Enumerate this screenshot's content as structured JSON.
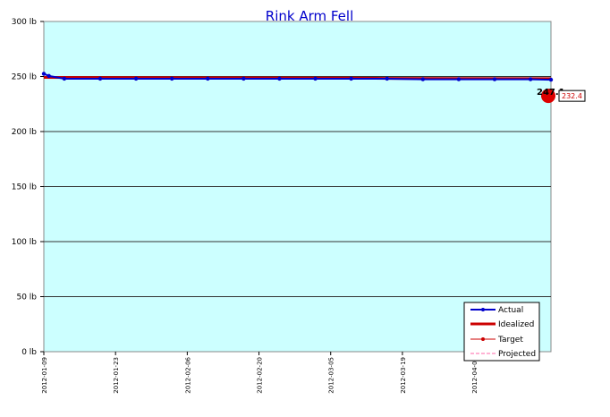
{
  "chart_data": {
    "type": "line",
    "title": "Rink Arm Fell",
    "y_unit": "lb",
    "ylim": [
      0,
      300
    ],
    "yticks": [
      0,
      50,
      100,
      150,
      200,
      250,
      300
    ],
    "ytick_labels": [
      "0 lb",
      "50 lb",
      "100 lb",
      "150 lb",
      "200 lb",
      "250 lb",
      "300 lb"
    ],
    "xlim": [
      "2012-01-09",
      "2012-04-17"
    ],
    "xtick_labels": [
      "2012-01-09",
      "2012-01-23",
      "2012-02-06",
      "2012-02-20",
      "2012-03-05",
      "2012-03-19",
      "2012-04-02"
    ],
    "grid": true,
    "legend_position": "bottom-right",
    "series": [
      {
        "name": "Actual",
        "color": "#0000cc",
        "x": [
          "2012-01-09",
          "2012-01-10",
          "2012-01-13",
          "2012-01-20",
          "2012-01-27",
          "2012-02-03",
          "2012-02-10",
          "2012-02-17",
          "2012-02-24",
          "2012-03-02",
          "2012-03-09",
          "2012-03-16",
          "2012-03-23",
          "2012-03-30",
          "2012-04-06",
          "2012-04-13",
          "2012-04-17"
        ],
        "values": [
          252.5,
          250.5,
          248.0,
          248.0,
          248.0,
          248.0,
          248.0,
          248.0,
          248.0,
          248.0,
          248.0,
          248.0,
          247.5,
          247.5,
          247.5,
          247.5,
          247.1
        ]
      },
      {
        "name": "Idealized",
        "color": "#cc0000",
        "x": [
          "2012-01-09",
          "2012-01-20",
          "2012-02-10",
          "2012-03-09",
          "2012-03-16",
          "2012-04-17"
        ],
        "values": [
          249.2,
          249.0,
          248.8,
          248.6,
          248.3,
          248.1
        ]
      },
      {
        "name": "Target",
        "color": "#cc0000",
        "x": [
          "2012-04-17"
        ],
        "values": [
          232.4
        ]
      },
      {
        "name": "Projected",
        "color": "#ff66aa",
        "x": [],
        "values": []
      }
    ],
    "annotations": [
      {
        "text": "247.1",
        "x": "2012-04-17",
        "y": 247.1
      },
      {
        "text": "232.4",
        "x": "2012-04-17",
        "y": 232.4
      }
    ],
    "colors": {
      "plot_background": "#ccffff",
      "grid": "#333333"
    }
  }
}
